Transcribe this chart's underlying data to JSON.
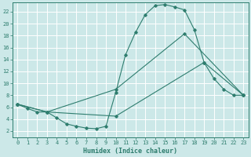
{
  "xlabel": "Humidex (Indice chaleur)",
  "background_color": "#cce8e8",
  "line_color": "#2e7d6e",
  "xlim": [
    -0.5,
    23.5
  ],
  "ylim": [
    1.0,
    23.5
  ],
  "xticks": [
    0,
    1,
    2,
    3,
    4,
    5,
    6,
    7,
    8,
    9,
    10,
    11,
    12,
    13,
    14,
    15,
    16,
    17,
    18,
    19,
    20,
    21,
    22,
    23
  ],
  "yticks": [
    2,
    4,
    6,
    8,
    10,
    12,
    14,
    16,
    18,
    20,
    22
  ],
  "grid_color": "#ffffff",
  "line1_x": [
    0,
    1,
    2,
    3,
    4,
    5,
    6,
    7,
    8,
    9,
    10,
    11,
    12,
    13,
    14,
    15,
    16,
    17,
    18,
    19,
    20,
    21,
    22,
    23
  ],
  "line1_y": [
    6.5,
    5.8,
    5.2,
    5.2,
    4.2,
    3.2,
    2.8,
    2.5,
    2.4,
    2.8,
    8.5,
    14.8,
    18.5,
    21.5,
    23.0,
    23.2,
    22.8,
    22.3,
    19.0,
    13.5,
    10.8,
    9.0,
    8.0,
    8.0
  ],
  "line2_x": [
    0,
    3,
    10,
    17,
    23
  ],
  "line2_y": [
    6.5,
    5.2,
    9.0,
    18.3,
    8.0
  ],
  "line3_x": [
    0,
    3,
    10,
    19,
    23
  ],
  "line3_y": [
    6.5,
    5.2,
    4.5,
    13.5,
    8.0
  ],
  "xlabel_fontsize": 6.0,
  "tick_fontsize": 5.0
}
